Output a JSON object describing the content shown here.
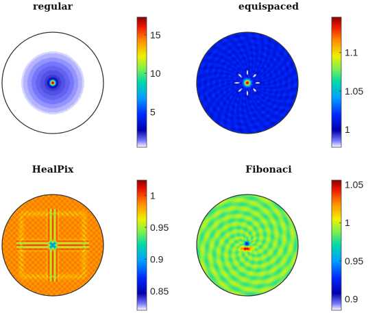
{
  "chart_data": [
    {
      "type": "heatmap",
      "title": "regular",
      "shape": "disk",
      "pattern": "regular",
      "colormap": "jet-with-white",
      "colorbar": {
        "ticks": [
          5,
          10,
          15
        ],
        "tick_labels": [
          "5",
          "10",
          "15"
        ],
        "range": [
          0.4,
          17.3
        ]
      }
    },
    {
      "type": "heatmap",
      "title": "equispaced",
      "shape": "disk",
      "pattern": "equispaced",
      "colormap": "jet-with-white",
      "colorbar": {
        "ticks": [
          1,
          1.05,
          1.1
        ],
        "tick_labels": [
          "1",
          "1.05",
          "1.1"
        ],
        "range": [
          0.977,
          1.146
        ]
      }
    },
    {
      "type": "heatmap",
      "title": "HealPix",
      "shape": "disk",
      "pattern": "healpix",
      "colormap": "jet-with-white",
      "colorbar": {
        "ticks": [
          0.85,
          0.9,
          0.95,
          1
        ],
        "tick_labels": [
          "0.85",
          "0.9",
          "0.95",
          "1"
        ],
        "range": [
          0.82,
          1.024
        ]
      }
    },
    {
      "type": "heatmap",
      "title": "Fibonaci",
      "shape": "disk",
      "pattern": "fibonacci",
      "colormap": "jet-with-white",
      "colorbar": {
        "ticks": [
          0.9,
          0.95,
          1,
          1.05
        ],
        "tick_labels": [
          "0.9",
          "0.95",
          "1",
          "1.05"
        ],
        "range": [
          0.885,
          1.056
        ]
      }
    }
  ]
}
